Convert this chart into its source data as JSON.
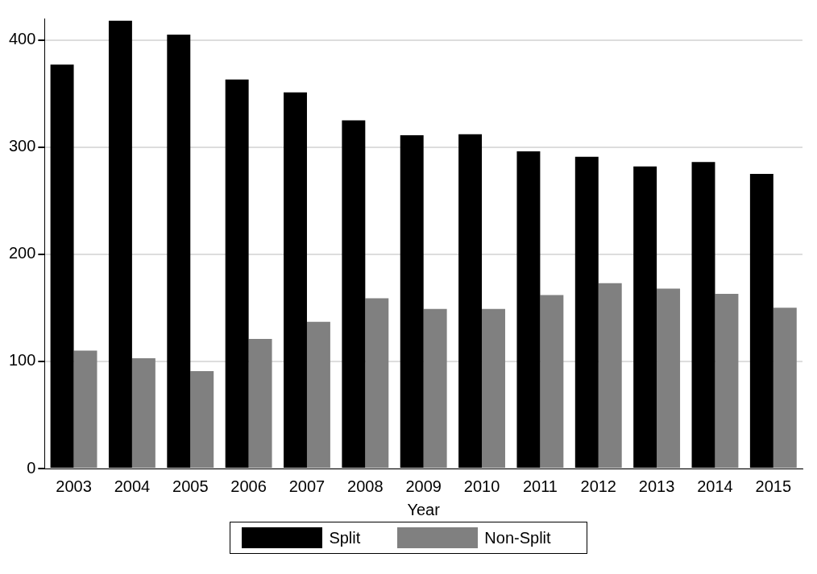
{
  "chart_data": {
    "type": "bar",
    "xlabel": "Year",
    "categories": [
      "2003",
      "2004",
      "2005",
      "2006",
      "2007",
      "2008",
      "2009",
      "2010",
      "2011",
      "2012",
      "2013",
      "2014",
      "2015"
    ],
    "series": [
      {
        "name": "Split",
        "color": "#000000",
        "values": [
          377,
          418,
          405,
          363,
          351,
          325,
          311,
          312,
          296,
          291,
          282,
          286,
          275
        ]
      },
      {
        "name": "Non-Split",
        "color": "#808080",
        "values": [
          110,
          103,
          91,
          121,
          137,
          159,
          149,
          149,
          162,
          173,
          168,
          163,
          150
        ]
      }
    ],
    "ylim": [
      0,
      420
    ],
    "yticks": [
      0,
      100,
      200,
      300,
      400
    ],
    "grid": "y",
    "legend": "bottom"
  }
}
